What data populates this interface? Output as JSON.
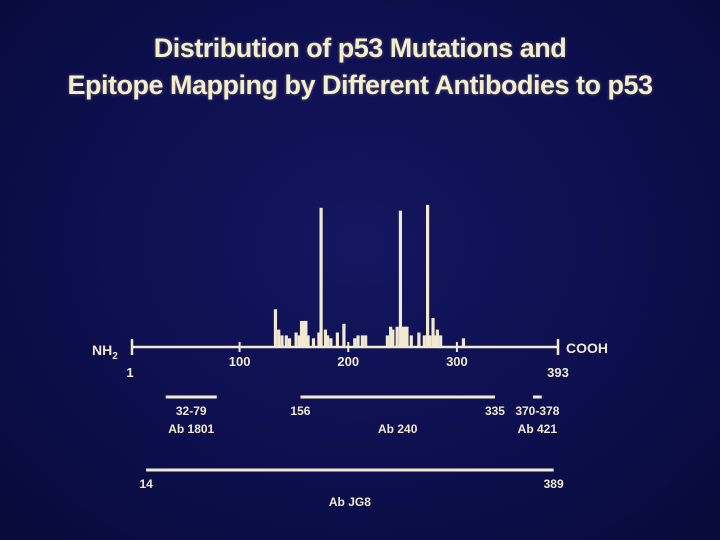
{
  "title": {
    "line1": "Distribution of p53 Mutations and",
    "line2": "Epitope Mapping by Different Antibodies to p53"
  },
  "colors": {
    "background": "#0d0f4e",
    "foreground": "#f1ead0"
  },
  "protein_axis": {
    "left_label_main": "NH",
    "left_label_sub": "2",
    "right_label": "COOH",
    "start_label": "1",
    "end_label": "393",
    "min": 1,
    "max": 393,
    "ticks": [
      {
        "value": 100,
        "label": "100"
      },
      {
        "value": 200,
        "label": "200"
      },
      {
        "value": 300,
        "label": "300"
      }
    ]
  },
  "chart_data": {
    "type": "bar",
    "x_unit": "amino acid position",
    "bars": [
      {
        "x": 133,
        "y": 13
      },
      {
        "x": 136,
        "y": 6
      },
      {
        "x": 139,
        "y": 4
      },
      {
        "x": 143,
        "y": 4
      },
      {
        "x": 146,
        "y": 3
      },
      {
        "x": 152,
        "y": 5
      },
      {
        "x": 155,
        "y": 4
      },
      {
        "x": 157,
        "y": 9
      },
      {
        "x": 159,
        "y": 9
      },
      {
        "x": 161,
        "y": 9
      },
      {
        "x": 163,
        "y": 4
      },
      {
        "x": 168,
        "y": 3
      },
      {
        "x": 173,
        "y": 5
      },
      {
        "x": 175,
        "y": 48
      },
      {
        "x": 179,
        "y": 6
      },
      {
        "x": 181,
        "y": 4
      },
      {
        "x": 184,
        "y": 3
      },
      {
        "x": 190,
        "y": 5
      },
      {
        "x": 196,
        "y": 8
      },
      {
        "x": 206,
        "y": 3
      },
      {
        "x": 209,
        "y": 4
      },
      {
        "x": 213,
        "y": 4
      },
      {
        "x": 216,
        "y": 4
      },
      {
        "x": 236,
        "y": 4
      },
      {
        "x": 239,
        "y": 7
      },
      {
        "x": 241,
        "y": 6
      },
      {
        "x": 245,
        "y": 7
      },
      {
        "x": 248,
        "y": 47
      },
      {
        "x": 250,
        "y": 7
      },
      {
        "x": 252,
        "y": 7
      },
      {
        "x": 254,
        "y": 7
      },
      {
        "x": 258,
        "y": 4
      },
      {
        "x": 265,
        "y": 5
      },
      {
        "x": 270,
        "y": 4
      },
      {
        "x": 273,
        "y": 49
      },
      {
        "x": 275,
        "y": 4
      },
      {
        "x": 278,
        "y": 10
      },
      {
        "x": 280,
        "y": 4
      },
      {
        "x": 282,
        "y": 6
      },
      {
        "x": 285,
        "y": 4
      },
      {
        "x": 306,
        "y": 3
      }
    ]
  },
  "epitopes": [
    {
      "name": "Ab 1801",
      "start": 32,
      "end": 79,
      "range_label": "32-79",
      "row": 1,
      "label_mode": "center"
    },
    {
      "name": "Ab 240",
      "start": 156,
      "end": 335,
      "start_label": "156",
      "end_label": "335",
      "row": 1,
      "label_mode": "ends"
    },
    {
      "name": "Ab 421",
      "start": 370,
      "end": 378,
      "range_label": "370-378",
      "row": 1,
      "label_mode": "center"
    },
    {
      "name": "Ab JG8",
      "start": 14,
      "end": 389,
      "start_label": "14",
      "end_label": "389",
      "row": 2,
      "label_mode": "ends"
    }
  ]
}
